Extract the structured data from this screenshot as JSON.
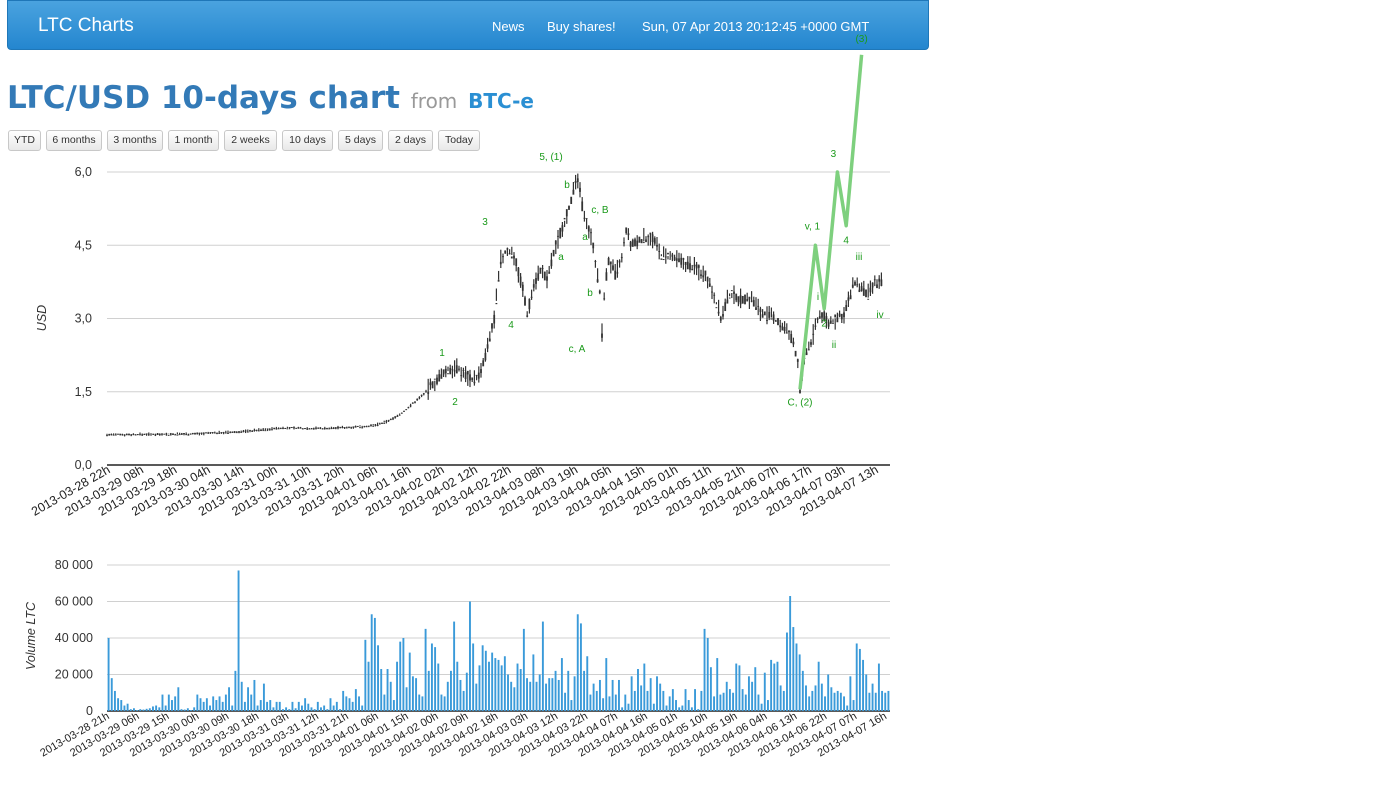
{
  "navbar": {
    "brand": "LTC Charts",
    "links": [
      "News",
      "Buy shares!"
    ],
    "datetime": "Sun, 07 Apr 2013 20:12:45 +0000 GMT"
  },
  "page": {
    "title": "LTC/USD 10-days chart",
    "from_label": "from",
    "source": "BTC-e"
  },
  "range_buttons": [
    "YTD",
    "6 months",
    "3 months",
    "1 month",
    "2 weeks",
    "10 days",
    "5 days",
    "2 days",
    "Today"
  ],
  "colors": {
    "navbar": "#2d8fd8",
    "title": "#337ab7",
    "candles": "#333333",
    "volume": "#3a9ad9",
    "elliott": "#7ed07e",
    "annotation": "#1a9a1a"
  },
  "chart_data": [
    {
      "type": "candlestick",
      "ylabel": "USD",
      "ylim": [
        0,
        6
      ],
      "yticks": [
        "0,0",
        "1,5",
        "3,0",
        "4,5",
        "6,0"
      ],
      "x_ticks": [
        "2013-03-28 22h",
        "2013-03-29 08h",
        "2013-03-29 18h",
        "2013-03-30 04h",
        "2013-03-30 14h",
        "2013-03-31 00h",
        "2013-03-31 10h",
        "2013-03-31 20h",
        "2013-04-01 06h",
        "2013-04-01 16h",
        "2013-04-02 02h",
        "2013-04-02 12h",
        "2013-04-02 22h",
        "2013-04-03 08h",
        "2013-04-03 19h",
        "2013-04-04 05h",
        "2013-04-04 15h",
        "2013-04-05 01h",
        "2013-04-05 11h",
        "2013-04-05 21h",
        "2013-04-06 07h",
        "2013-04-06 17h",
        "2013-04-07 03h",
        "2013-04-07 13h"
      ],
      "price_path": [
        [
          0,
          0.62
        ],
        [
          20,
          0.63
        ],
        [
          40,
          0.64
        ],
        [
          60,
          0.68
        ],
        [
          70,
          0.72
        ],
        [
          80,
          0.76
        ],
        [
          100,
          0.75
        ],
        [
          120,
          0.8
        ],
        [
          125,
          0.85
        ],
        [
          130,
          0.95
        ],
        [
          135,
          1.1
        ],
        [
          140,
          1.3
        ],
        [
          145,
          1.5
        ],
        [
          150,
          1.75
        ],
        [
          155,
          1.95
        ],
        [
          158,
          2.0
        ],
        [
          163,
          1.85
        ],
        [
          167,
          1.75
        ],
        [
          170,
          1.9
        ],
        [
          173,
          2.4
        ],
        [
          176,
          3.0
        ],
        [
          179,
          4.2
        ],
        [
          182,
          4.4
        ],
        [
          185,
          4.3
        ],
        [
          189,
          3.6
        ],
        [
          191,
          3.1
        ],
        [
          194,
          3.7
        ],
        [
          197,
          4.0
        ],
        [
          200,
          3.8
        ],
        [
          204,
          4.5
        ],
        [
          208,
          5.0
        ],
        [
          212,
          5.6
        ],
        [
          214,
          5.85
        ],
        [
          216,
          5.3
        ],
        [
          218,
          5.0
        ],
        [
          221,
          4.5
        ],
        [
          224,
          3.5
        ],
        [
          225,
          2.7
        ],
        [
          226,
          3.5
        ],
        [
          228,
          4.2
        ],
        [
          231,
          3.9
        ],
        [
          234,
          4.2
        ],
        [
          236,
          4.8
        ],
        [
          238,
          4.5
        ],
        [
          242,
          4.6
        ],
        [
          247,
          4.7
        ],
        [
          252,
          4.3
        ],
        [
          258,
          4.2
        ],
        [
          265,
          4.1
        ],
        [
          272,
          3.9
        ],
        [
          276,
          3.5
        ],
        [
          279,
          3.0
        ],
        [
          283,
          3.5
        ],
        [
          288,
          3.4
        ],
        [
          293,
          3.4
        ],
        [
          298,
          3.1
        ],
        [
          303,
          3.0
        ],
        [
          308,
          2.8
        ],
        [
          312,
          2.5
        ],
        [
          314,
          2.1
        ],
        [
          315,
          1.55
        ],
        [
          317,
          2.2
        ],
        [
          320,
          2.5
        ],
        [
          323,
          3.0
        ],
        [
          325,
          3.1
        ],
        [
          328,
          2.9
        ],
        [
          332,
          3.0
        ],
        [
          335,
          3.1
        ],
        [
          338,
          3.5
        ],
        [
          340,
          3.75
        ],
        [
          343,
          3.6
        ],
        [
          346,
          3.5
        ],
        [
          349,
          3.7
        ],
        [
          352,
          3.75
        ]
      ],
      "elliott_wave": {
        "points": [
          [
            315,
            1.55
          ],
          [
            322,
            4.5
          ],
          [
            326,
            3.2
          ],
          [
            332,
            6.0
          ],
          [
            336,
            4.9
          ],
          [
            343,
            8.4
          ]
        ],
        "labels": [
          "C, (2)",
          "v, 1",
          "2",
          "3",
          "4",
          "(3)"
        ]
      },
      "annotations": [
        "1",
        "2",
        "3",
        "4",
        "5, (1)",
        "b",
        "a",
        "c, A",
        "c, B",
        "a",
        "b",
        "i",
        "ii",
        "iii",
        "iv"
      ]
    },
    {
      "type": "bar",
      "ylabel": "Volume LTC",
      "ylim": [
        0,
        80000
      ],
      "yticks": [
        "0",
        "20 000",
        "40 000",
        "60 000",
        "80 000"
      ],
      "x_ticks": [
        "2013-03-28 21h",
        "2013-03-29 06h",
        "2013-03-29 15h",
        "2013-03-30 00h",
        "2013-03-30 09h",
        "2013-03-30 18h",
        "2013-03-31 03h",
        "2013-03-31 12h",
        "2013-03-31 21h",
        "2013-04-01 06h",
        "2013-04-01 15h",
        "2013-04-02 00h",
        "2013-04-02 09h",
        "2013-04-02 18h",
        "2013-04-03 03h",
        "2013-04-03 12h",
        "2013-04-03 22h",
        "2013-04-04 07h",
        "2013-04-04 16h",
        "2013-04-05 01h",
        "2013-04-05 10h",
        "2013-04-05 19h",
        "2013-04-06 04h",
        "2013-04-06 13h",
        "2013-04-06 22h",
        "2013-04-07 07h",
        "2013-04-07 16h"
      ],
      "values": [
        40000,
        18000,
        11000,
        7000,
        6000,
        3000,
        4000,
        1000,
        1500,
        500,
        1000,
        800,
        1200,
        1500,
        2500,
        3000,
        2000,
        9000,
        3000,
        9000,
        6000,
        8000,
        13000,
        1000,
        800,
        1500,
        500,
        2000,
        9000,
        7000,
        5000,
        7000,
        3000,
        8000,
        6000,
        8000,
        5000,
        9000,
        13000,
        3000,
        22000,
        77000,
        16000,
        5000,
        13000,
        9000,
        17000,
        3000,
        6000,
        15000,
        5000,
        6000,
        2000,
        5000,
        5000,
        1000,
        2000,
        1000,
        5000,
        1500,
        5000,
        3000,
        7000,
        4000,
        2000,
        1000,
        5000,
        2000,
        3000,
        1000,
        7000,
        3000,
        5000,
        1000,
        11000,
        8000,
        7000,
        5000,
        12000,
        8000,
        3000,
        39000,
        27000,
        53000,
        51000,
        36000,
        23000,
        9000,
        23000,
        16000,
        6000,
        27000,
        38000,
        40000,
        13000,
        32000,
        19000,
        18000,
        9000,
        8000,
        45000,
        22000,
        37000,
        35000,
        26000,
        9000,
        8000,
        16000,
        22000,
        49000,
        27000,
        17000,
        11000,
        21000,
        60000,
        37000,
        15000,
        25000,
        36000,
        33000,
        27000,
        32000,
        29000,
        28000,
        25000,
        30000,
        20000,
        16000,
        13000,
        26000,
        23000,
        45000,
        18000,
        16000,
        31000,
        16000,
        20000,
        49000,
        15000,
        18000,
        18000,
        22000,
        17000,
        29000,
        10000,
        22000,
        6000,
        19000,
        53000,
        48000,
        22000,
        30000,
        9000,
        15000,
        11000,
        17000,
        7000,
        29000,
        8000,
        17000,
        9000,
        17000,
        2000,
        9000,
        4000,
        19000,
        11000,
        23000,
        14000,
        26000,
        11000,
        18000,
        4000,
        19000,
        15000,
        11000,
        3000,
        8000,
        12000,
        6000,
        2000,
        3000,
        12000,
        6000,
        2000,
        12000,
        1000,
        11000,
        45000,
        40000,
        24000,
        8000,
        29000,
        9000,
        10000,
        16000,
        12000,
        10000,
        26000,
        25000,
        12000,
        9000,
        19000,
        16000,
        24000,
        9000,
        4000,
        21000,
        6000,
        28000,
        26000,
        27000,
        14000,
        11000,
        43000,
        63000,
        46000,
        37000,
        31000,
        22000,
        14000,
        8000,
        11000,
        14000,
        27000,
        15000,
        8000,
        20000,
        13000,
        10000,
        11000,
        10000,
        8000,
        3000,
        19000,
        6000,
        37000,
        34000,
        28000,
        20000,
        10000,
        15000,
        10000,
        26000,
        11000,
        10000,
        11000
      ]
    }
  ]
}
